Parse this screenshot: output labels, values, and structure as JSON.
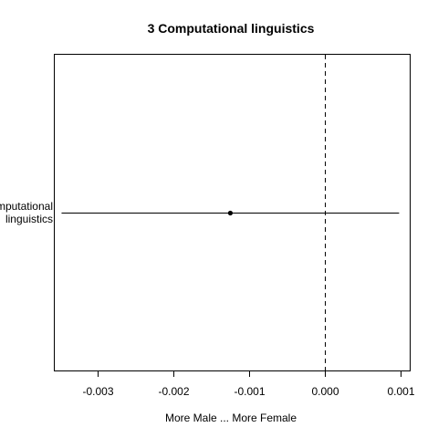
{
  "chart_data": {
    "type": "scatter",
    "title": "3 Computational linguistics",
    "xlabel": "More Male ... More Female",
    "ylabel": "",
    "xlim": [
      -0.00357,
      0.00112
    ],
    "x_ticks": [
      -0.003,
      -0.002,
      -0.001,
      0.0,
      0.001
    ],
    "x_tick_labels": [
      "-0.003",
      "-0.002",
      "-0.001",
      "0.000",
      "0.001"
    ],
    "reference_line": {
      "x": 0.0,
      "style": "dashed"
    },
    "categories": [
      {
        "lines": [
          "Computational",
          "linguistics"
        ]
      }
    ],
    "points": [
      {
        "estimate": -0.00125,
        "lower": -0.00348,
        "upper": 0.00098
      }
    ],
    "grid": false,
    "colors": {
      "line": "#000000",
      "point": "#000000",
      "background": "#ffffff"
    }
  }
}
